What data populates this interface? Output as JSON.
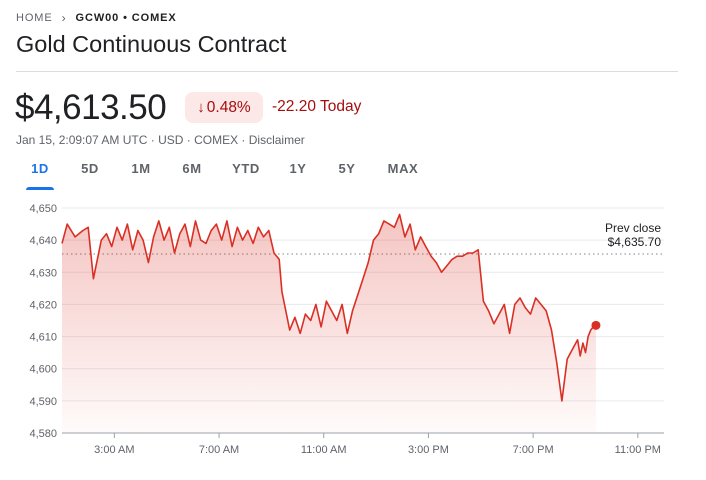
{
  "breadcrumb": {
    "home": "HOME",
    "current": "GCW00 • COMEX"
  },
  "title": "Gold Continuous Contract",
  "quote": {
    "price": "$4,613.50",
    "change_pct": "0.48%",
    "change_abs": "-22.20 Today",
    "meta": "Jan 15, 2:09:07 AM UTC · USD · COMEX · Disclaimer"
  },
  "tabs": [
    "1D",
    "5D",
    "1M",
    "6M",
    "YTD",
    "1Y",
    "5Y",
    "MAX"
  ],
  "active_tab": "1D",
  "colors": {
    "down": "#d93025",
    "down_text": "#a50e0e",
    "accent": "#1a73e8",
    "grid": "#e8eaed"
  },
  "chart_data": {
    "type": "area",
    "ylim": [
      4580,
      4650
    ],
    "yticks": [
      "4,650",
      "4,640",
      "4,630",
      "4,620",
      "4,610",
      "4,600",
      "4,590",
      "4,580"
    ],
    "xticks": [
      "3:00 AM",
      "7:00 AM",
      "11:00 AM",
      "3:00 PM",
      "7:00 PM",
      "11:00 PM"
    ],
    "xtick_hours": [
      3,
      7,
      11,
      15,
      19,
      23
    ],
    "xlim_hours": [
      1,
      24
    ],
    "prev_close": {
      "label": "Prev close",
      "value": 4635.7,
      "value_label": "$4,635.70"
    },
    "series": [
      {
        "x": [
          1.0,
          1.2,
          1.5,
          1.8,
          2.0,
          2.2,
          2.5,
          2.7,
          2.9,
          3.1,
          3.3,
          3.5,
          3.7,
          3.9,
          4.1,
          4.3,
          4.5,
          4.7,
          4.9,
          5.1,
          5.3,
          5.5,
          5.7,
          5.9,
          6.1,
          6.3,
          6.5,
          6.7,
          6.9,
          7.1,
          7.3,
          7.5,
          7.7,
          7.9,
          8.1,
          8.3,
          8.5,
          8.7,
          8.9,
          9.1,
          9.3,
          9.4,
          9.5,
          9.7,
          9.9,
          10.1,
          10.3,
          10.5,
          10.7,
          10.9,
          11.1,
          11.3,
          11.5,
          11.7,
          11.9,
          12.1,
          12.3,
          12.5,
          12.7,
          12.9,
          13.1,
          13.3,
          13.5,
          13.7,
          13.9,
          14.1,
          14.3,
          14.5,
          14.7,
          14.9,
          15.1,
          15.3,
          15.5,
          15.7,
          15.9,
          16.1,
          16.3,
          16.5,
          16.7,
          16.9,
          17.1,
          17.3,
          17.5,
          17.7,
          17.9,
          18.1,
          18.3,
          18.5,
          18.7,
          18.9,
          19.1,
          19.3,
          19.5,
          19.7,
          19.9,
          20.1,
          20.3,
          20.5,
          20.7,
          20.8,
          20.9,
          21.0,
          21.1,
          21.2,
          21.3,
          21.4
        ],
        "y": [
          4639,
          4645,
          4641,
          4643,
          4644,
          4628,
          4640,
          4642,
          4638,
          4644,
          4640,
          4645,
          4637,
          4643,
          4640,
          4633,
          4641,
          4646,
          4640,
          4644,
          4636,
          4642,
          4645,
          4638,
          4646,
          4640,
          4639,
          4643,
          4645,
          4640,
          4646,
          4638,
          4644,
          4640,
          4643,
          4639,
          4644,
          4641,
          4643,
          4636,
          4634,
          4624,
          4620,
          4612,
          4616,
          4611,
          4617,
          4615,
          4620,
          4613,
          4621,
          4618,
          4615,
          4620,
          4611,
          4618,
          4623,
          4628,
          4633,
          4640,
          4642,
          4646,
          4645,
          4644,
          4648,
          4641,
          4645,
          4637,
          4641,
          4638,
          4635,
          4633,
          4630,
          4632,
          4634,
          4635,
          4635,
          4636,
          4636,
          4637,
          4621,
          4618,
          4614,
          4617,
          4620,
          4611,
          4620,
          4622,
          4619,
          4617,
          4622,
          4620,
          4618,
          4612,
          4602,
          4590,
          4603,
          4606,
          4609,
          4604,
          4608,
          4605,
          4610,
          4612,
          4613,
          4613.5
        ]
      }
    ]
  }
}
